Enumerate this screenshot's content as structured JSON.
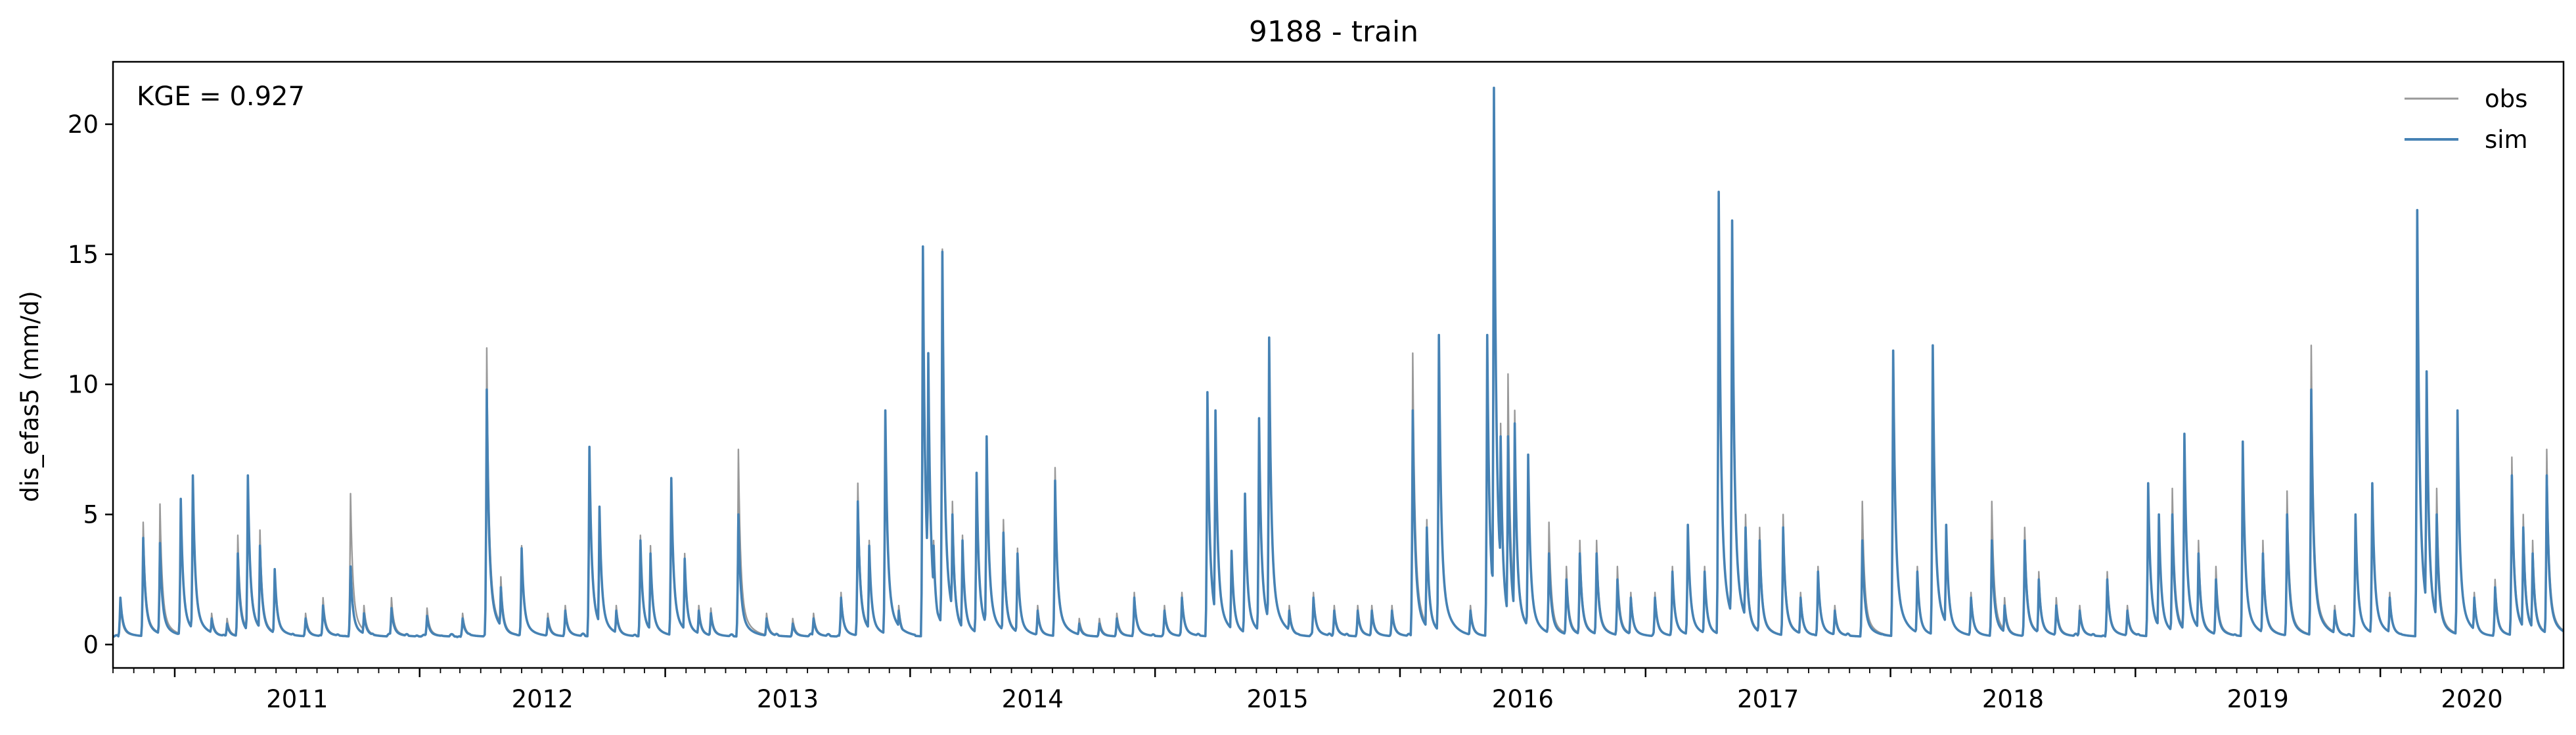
{
  "chart_data": {
    "type": "line",
    "title": "9188 - train",
    "xlabel": "",
    "ylabel": "dis_efas5 (mm/d)",
    "x_range": [
      "2010-10-01",
      "2020-09-30"
    ],
    "ylim": [
      -0.9,
      22.4
    ],
    "yticks": [
      0,
      5,
      10,
      15,
      20
    ],
    "xticks": [
      "2011",
      "2012",
      "2013",
      "2014",
      "2015",
      "2016",
      "2017",
      "2018",
      "2019",
      "2020"
    ],
    "grid": false,
    "legend_position": "top-right",
    "annotation": "KGE = 0.927",
    "baseline": 0.3,
    "series": [
      {
        "name": "obs",
        "color": "#999999",
        "peaks": [
          [
            "2010-10-12",
            1.5
          ],
          [
            "2010-11-15",
            4.7
          ],
          [
            "2010-12-10",
            5.4
          ],
          [
            "2011-01-10",
            5.6
          ],
          [
            "2011-01-28",
            6.1
          ],
          [
            "2011-02-25",
            1.2
          ],
          [
            "2011-03-20",
            1.0
          ],
          [
            "2011-04-05",
            4.2
          ],
          [
            "2011-04-20",
            6.0
          ],
          [
            "2011-05-08",
            4.4
          ],
          [
            "2011-05-30",
            2.6
          ],
          [
            "2011-07-15",
            1.2
          ],
          [
            "2011-08-10",
            1.8
          ],
          [
            "2011-09-20",
            5.8
          ],
          [
            "2011-10-10",
            1.5
          ],
          [
            "2011-11-20",
            1.8
          ],
          [
            "2012-01-12",
            1.4
          ],
          [
            "2012-03-05",
            1.2
          ],
          [
            "2012-04-10",
            11.4
          ],
          [
            "2012-05-01",
            2.6
          ],
          [
            "2012-06-01",
            3.8
          ],
          [
            "2012-07-10",
            1.2
          ],
          [
            "2012-08-05",
            1.5
          ],
          [
            "2012-09-10",
            7.5
          ],
          [
            "2012-09-25",
            5.3
          ],
          [
            "2012-10-20",
            1.5
          ],
          [
            "2012-11-25",
            4.2
          ],
          [
            "2012-12-10",
            3.8
          ],
          [
            "2013-01-10",
            6.3
          ],
          [
            "2013-01-30",
            3.5
          ],
          [
            "2013-02-20",
            1.5
          ],
          [
            "2013-03-10",
            1.4
          ],
          [
            "2013-04-20",
            7.5
          ],
          [
            "2013-06-01",
            1.2
          ],
          [
            "2013-07-10",
            1.0
          ],
          [
            "2013-08-10",
            1.2
          ],
          [
            "2013-09-20",
            2.0
          ],
          [
            "2013-10-15",
            6.2
          ],
          [
            "2013-11-01",
            4.0
          ],
          [
            "2013-11-25",
            9.0
          ],
          [
            "2013-12-15",
            1.5
          ],
          [
            "2014-01-20",
            15.3
          ],
          [
            "2014-01-28",
            11.0
          ],
          [
            "2014-02-05",
            4.0
          ],
          [
            "2014-02-18",
            15.2
          ],
          [
            "2014-03-05",
            5.5
          ],
          [
            "2014-03-20",
            4.2
          ],
          [
            "2014-04-10",
            6.6
          ],
          [
            "2014-04-25",
            8.0
          ],
          [
            "2014-05-20",
            4.8
          ],
          [
            "2014-06-10",
            3.7
          ],
          [
            "2014-07-10",
            1.5
          ],
          [
            "2014-08-05",
            6.8
          ],
          [
            "2014-09-10",
            1.0
          ],
          [
            "2014-10-10",
            1.0
          ],
          [
            "2014-11-05",
            1.2
          ],
          [
            "2014-12-01",
            2.0
          ],
          [
            "2015-01-15",
            1.5
          ],
          [
            "2015-02-10",
            2.0
          ],
          [
            "2015-03-20",
            9.7
          ],
          [
            "2015-04-01",
            9.0
          ],
          [
            "2015-04-25",
            3.6
          ],
          [
            "2015-05-15",
            5.8
          ],
          [
            "2015-06-05",
            8.7
          ],
          [
            "2015-06-20",
            11.8
          ],
          [
            "2015-07-20",
            1.5
          ],
          [
            "2015-08-25",
            2.0
          ],
          [
            "2015-09-25",
            1.5
          ],
          [
            "2015-10-30",
            1.5
          ],
          [
            "2015-11-20",
            1.5
          ],
          [
            "2015-12-20",
            1.5
          ],
          [
            "2016-01-20",
            11.2
          ],
          [
            "2016-02-10",
            4.8
          ],
          [
            "2016-02-28",
            11.9
          ],
          [
            "2016-03-15",
            1.0
          ],
          [
            "2016-04-15",
            1.5
          ],
          [
            "2016-05-10",
            11.9
          ],
          [
            "2016-05-20",
            21.4
          ],
          [
            "2016-05-30",
            8.5
          ],
          [
            "2016-06-10",
            10.4
          ],
          [
            "2016-06-20",
            9.0
          ],
          [
            "2016-07-10",
            7.3
          ],
          [
            "2016-08-10",
            4.7
          ],
          [
            "2016-09-05",
            3.0
          ],
          [
            "2016-09-25",
            4.0
          ],
          [
            "2016-10-20",
            4.0
          ],
          [
            "2016-11-20",
            3.0
          ],
          [
            "2016-12-10",
            2.0
          ],
          [
            "2017-01-15",
            2.0
          ],
          [
            "2017-02-10",
            3.0
          ],
          [
            "2017-03-05",
            4.6
          ],
          [
            "2017-03-30",
            3.0
          ],
          [
            "2017-04-20",
            17.4
          ],
          [
            "2017-05-10",
            16.3
          ],
          [
            "2017-05-30",
            5.0
          ],
          [
            "2017-06-20",
            4.5
          ],
          [
            "2017-07-25",
            5.0
          ],
          [
            "2017-08-20",
            2.0
          ],
          [
            "2017-09-15",
            3.0
          ],
          [
            "2017-10-10",
            1.5
          ],
          [
            "2017-11-20",
            5.5
          ],
          [
            "2018-01-05",
            11.3
          ],
          [
            "2018-02-10",
            3.0
          ],
          [
            "2018-03-05",
            11.5
          ],
          [
            "2018-03-25",
            4.6
          ],
          [
            "2018-05-01",
            2.0
          ],
          [
            "2018-06-01",
            5.5
          ],
          [
            "2018-06-20",
            1.8
          ],
          [
            "2018-07-20",
            4.5
          ],
          [
            "2018-08-10",
            2.8
          ],
          [
            "2018-09-05",
            1.8
          ],
          [
            "2018-10-10",
            1.5
          ],
          [
            "2018-11-20",
            2.8
          ],
          [
            "2018-12-20",
            1.5
          ],
          [
            "2019-01-20",
            6.2
          ],
          [
            "2019-02-05",
            5.0
          ],
          [
            "2019-02-25",
            6.0
          ],
          [
            "2019-03-15",
            8.1
          ],
          [
            "2019-04-05",
            4.0
          ],
          [
            "2019-05-01",
            3.0
          ],
          [
            "2019-06-10",
            7.8
          ],
          [
            "2019-07-10",
            4.0
          ],
          [
            "2019-08-15",
            5.9
          ],
          [
            "2019-09-20",
            11.5
          ],
          [
            "2019-10-25",
            1.5
          ],
          [
            "2019-11-25",
            5.0
          ],
          [
            "2019-12-20",
            6.2
          ],
          [
            "2020-01-15",
            2.0
          ],
          [
            "2020-02-25",
            16.7
          ],
          [
            "2020-03-10",
            10.5
          ],
          [
            "2020-03-25",
            6.0
          ],
          [
            "2020-04-25",
            9.0
          ],
          [
            "2020-05-20",
            2.0
          ],
          [
            "2020-06-20",
            2.5
          ],
          [
            "2020-07-15",
            7.2
          ],
          [
            "2020-08-01",
            5.0
          ],
          [
            "2020-08-15",
            4.0
          ],
          [
            "2020-09-05",
            7.5
          ]
        ]
      },
      {
        "name": "sim",
        "color": "#4682b4",
        "peaks": [
          [
            "2010-10-12",
            1.8
          ],
          [
            "2010-11-15",
            4.1
          ],
          [
            "2010-12-10",
            3.9
          ],
          [
            "2011-01-10",
            5.6
          ],
          [
            "2011-01-28",
            6.5
          ],
          [
            "2011-02-25",
            1.0
          ],
          [
            "2011-03-20",
            0.8
          ],
          [
            "2011-04-05",
            3.5
          ],
          [
            "2011-04-20",
            6.5
          ],
          [
            "2011-05-08",
            3.8
          ],
          [
            "2011-05-30",
            2.9
          ],
          [
            "2011-07-15",
            1.0
          ],
          [
            "2011-08-10",
            1.5
          ],
          [
            "2011-09-20",
            3.0
          ],
          [
            "2011-10-10",
            1.2
          ],
          [
            "2011-11-20",
            1.4
          ],
          [
            "2012-01-12",
            1.1
          ],
          [
            "2012-03-05",
            1.0
          ],
          [
            "2012-04-10",
            9.8
          ],
          [
            "2012-05-01",
            2.2
          ],
          [
            "2012-06-01",
            3.7
          ],
          [
            "2012-07-10",
            1.0
          ],
          [
            "2012-08-05",
            1.3
          ],
          [
            "2012-09-10",
            7.6
          ],
          [
            "2012-09-25",
            5.3
          ],
          [
            "2012-10-20",
            1.3
          ],
          [
            "2012-11-25",
            4.0
          ],
          [
            "2012-12-10",
            3.5
          ],
          [
            "2013-01-10",
            6.4
          ],
          [
            "2013-01-30",
            3.3
          ],
          [
            "2013-02-20",
            1.3
          ],
          [
            "2013-03-10",
            1.2
          ],
          [
            "2013-04-20",
            5.0
          ],
          [
            "2013-06-01",
            1.0
          ],
          [
            "2013-07-10",
            0.8
          ],
          [
            "2013-08-10",
            1.0
          ],
          [
            "2013-09-20",
            1.8
          ],
          [
            "2013-10-15",
            5.5
          ],
          [
            "2013-11-01",
            3.8
          ],
          [
            "2013-11-25",
            9.0
          ],
          [
            "2013-12-15",
            1.3
          ],
          [
            "2014-01-20",
            15.3
          ],
          [
            "2014-01-28",
            11.2
          ],
          [
            "2014-02-05",
            3.8
          ],
          [
            "2014-02-18",
            15.1
          ],
          [
            "2014-03-05",
            5.0
          ],
          [
            "2014-03-20",
            4.0
          ],
          [
            "2014-04-10",
            6.6
          ],
          [
            "2014-04-25",
            8.0
          ],
          [
            "2014-05-20",
            4.3
          ],
          [
            "2014-06-10",
            3.5
          ],
          [
            "2014-07-10",
            1.3
          ],
          [
            "2014-08-05",
            6.3
          ],
          [
            "2014-09-10",
            0.8
          ],
          [
            "2014-10-10",
            0.8
          ],
          [
            "2014-11-05",
            1.0
          ],
          [
            "2014-12-01",
            1.8
          ],
          [
            "2015-01-15",
            1.3
          ],
          [
            "2015-02-10",
            1.8
          ],
          [
            "2015-03-20",
            9.7
          ],
          [
            "2015-04-01",
            9.0
          ],
          [
            "2015-04-25",
            3.6
          ],
          [
            "2015-05-15",
            5.8
          ],
          [
            "2015-06-05",
            8.7
          ],
          [
            "2015-06-20",
            11.8
          ],
          [
            "2015-07-20",
            1.3
          ],
          [
            "2015-08-25",
            1.8
          ],
          [
            "2015-09-25",
            1.3
          ],
          [
            "2015-10-30",
            1.3
          ],
          [
            "2015-11-20",
            1.3
          ],
          [
            "2015-12-20",
            1.3
          ],
          [
            "2016-01-20",
            9.0
          ],
          [
            "2016-02-10",
            4.5
          ],
          [
            "2016-02-28",
            11.9
          ],
          [
            "2016-03-15",
            0.8
          ],
          [
            "2016-04-15",
            1.3
          ],
          [
            "2016-05-10",
            11.9
          ],
          [
            "2016-05-20",
            21.4
          ],
          [
            "2016-05-30",
            8.0
          ],
          [
            "2016-06-10",
            8.0
          ],
          [
            "2016-06-20",
            8.5
          ],
          [
            "2016-07-10",
            7.3
          ],
          [
            "2016-08-10",
            3.5
          ],
          [
            "2016-09-05",
            2.5
          ],
          [
            "2016-09-25",
            3.5
          ],
          [
            "2016-10-20",
            3.5
          ],
          [
            "2016-11-20",
            2.5
          ],
          [
            "2016-12-10",
            1.8
          ],
          [
            "2017-01-15",
            1.8
          ],
          [
            "2017-02-10",
            2.8
          ],
          [
            "2017-03-05",
            4.6
          ],
          [
            "2017-03-30",
            2.8
          ],
          [
            "2017-04-20",
            17.4
          ],
          [
            "2017-05-10",
            16.3
          ],
          [
            "2017-05-30",
            4.5
          ],
          [
            "2017-06-20",
            4.0
          ],
          [
            "2017-07-25",
            4.5
          ],
          [
            "2017-08-20",
            1.8
          ],
          [
            "2017-09-15",
            2.8
          ],
          [
            "2017-10-10",
            1.3
          ],
          [
            "2017-11-20",
            4.0
          ],
          [
            "2018-01-05",
            11.3
          ],
          [
            "2018-02-10",
            2.8
          ],
          [
            "2018-03-05",
            11.5
          ],
          [
            "2018-03-25",
            4.6
          ],
          [
            "2018-05-01",
            1.8
          ],
          [
            "2018-06-01",
            4.0
          ],
          [
            "2018-06-20",
            1.5
          ],
          [
            "2018-07-20",
            4.0
          ],
          [
            "2018-08-10",
            2.5
          ],
          [
            "2018-09-05",
            1.5
          ],
          [
            "2018-10-10",
            1.3
          ],
          [
            "2018-11-20",
            2.5
          ],
          [
            "2018-12-20",
            1.3
          ],
          [
            "2019-01-20",
            6.2
          ],
          [
            "2019-02-05",
            5.0
          ],
          [
            "2019-02-25",
            5.0
          ],
          [
            "2019-03-15",
            8.1
          ],
          [
            "2019-04-05",
            3.5
          ],
          [
            "2019-05-01",
            2.5
          ],
          [
            "2019-06-10",
            7.8
          ],
          [
            "2019-07-10",
            3.5
          ],
          [
            "2019-08-15",
            5.0
          ],
          [
            "2019-09-20",
            9.8
          ],
          [
            "2019-10-25",
            1.3
          ],
          [
            "2019-11-25",
            5.0
          ],
          [
            "2019-12-20",
            6.2
          ],
          [
            "2020-01-15",
            1.8
          ],
          [
            "2020-02-25",
            16.7
          ],
          [
            "2020-03-10",
            10.5
          ],
          [
            "2020-03-25",
            5.0
          ],
          [
            "2020-04-25",
            9.0
          ],
          [
            "2020-05-20",
            1.8
          ],
          [
            "2020-06-20",
            2.2
          ],
          [
            "2020-07-15",
            6.5
          ],
          [
            "2020-08-01",
            4.5
          ],
          [
            "2020-08-15",
            3.5
          ],
          [
            "2020-09-05",
            6.5
          ]
        ]
      }
    ]
  }
}
